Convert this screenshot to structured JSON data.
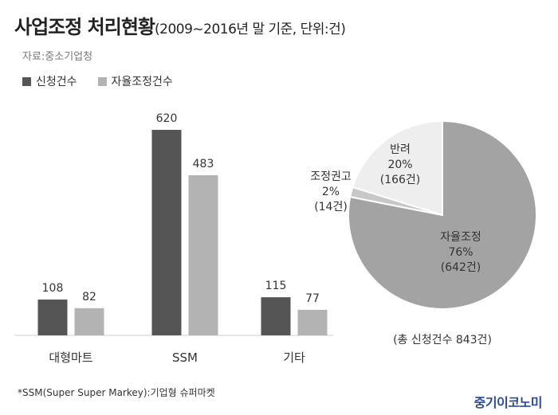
{
  "title": {
    "main": "사업조정 처리현황",
    "sub": "(2009~2016년 말 기준, 단위:건)"
  },
  "source": "자료:중소기업청",
  "legend": [
    {
      "label": "신청건수",
      "color": "#555555"
    },
    {
      "label": "자율조정건수",
      "color": "#b3b3b3"
    }
  ],
  "footnote": "*SSM(Super Super Markey):기업형 슈퍼마켓",
  "brand": "중기이코노미",
  "chart_data": [
    {
      "type": "bar",
      "categories": [
        "대형마트",
        "SSM",
        "기타"
      ],
      "series": [
        {
          "name": "신청건수",
          "values": [
            108,
            620,
            115
          ],
          "color": "#555555"
        },
        {
          "name": "자율조정건수",
          "values": [
            82,
            483,
            77
          ],
          "color": "#b3b3b3"
        }
      ],
      "data_labels": true,
      "grid": false,
      "legend_position": "top-left"
    },
    {
      "type": "pie",
      "slices": [
        {
          "label": "자율조정",
          "percent_label": "76%",
          "count_label": "(642건)",
          "value": 642,
          "color": "#a3a3a3"
        },
        {
          "label": "조정권고",
          "percent_label": "2%",
          "count_label": "(14건)",
          "value": 14,
          "color": "#c8c8c8"
        },
        {
          "label": "반려",
          "percent_label": "20%",
          "count_label": "(166건)",
          "value": 166,
          "color": "#eeeeee"
        }
      ],
      "total_label": "(총 신청건수 843건)"
    }
  ]
}
